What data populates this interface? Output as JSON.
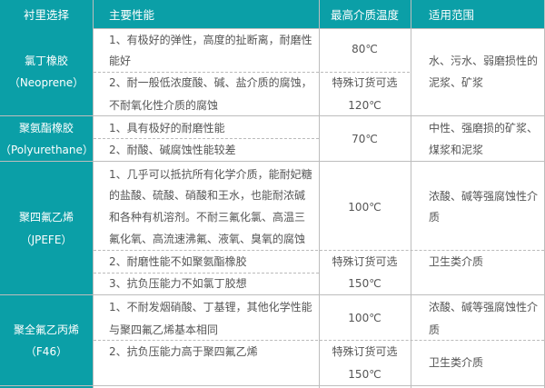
{
  "theme": {
    "header_bg": "#0b9fa7",
    "first_col_bg": "#0b9fa7",
    "text": "#555555",
    "header_text": "#ffffff"
  },
  "header": [
    "衬里选择",
    "主要性能",
    "最高介质温度",
    "适用范围"
  ],
  "groups": [
    {
      "name": [
        "氯丁橡胶",
        "（Neoprene）"
      ],
      "props": [
        [
          "1、有极好的弹性，高度的扯断离，耐磨性",
          "能好"
        ],
        [
          "2、耐一般低浓度酸、碱、盐介质的腐蚀，",
          "不耐氧化性介质的腐蚀"
        ]
      ],
      "temps": [
        "80℃",
        "特殊订货可选",
        "120℃"
      ],
      "scope": [
        [
          "水、污水、弱磨损性的",
          "泥浆、矿浆"
        ]
      ]
    },
    {
      "name": [
        "聚氨酯橡胶",
        "（Polyurethane）"
      ],
      "props": [
        [
          "1、具有极好的耐磨性能"
        ],
        [
          "2、耐酸、碱腐蚀性能较差"
        ]
      ],
      "temps": [
        "70℃"
      ],
      "scope": [
        [
          "中性、强磨损的矿浆、",
          "煤浆和泥浆"
        ]
      ]
    },
    {
      "name": [
        "聚四氟乙烯",
        "（JPEFE）"
      ],
      "props": [
        [
          "1、几乎可以抵抗所有化学介质，能耐妃糖",
          "的盐酸、硫酸、硝酸和王水，也能耐浓碱",
          "和各种有机溶剂。不耐三氟化氯、高温三",
          "氟化氧、高流速沸氟、液氧、臭氧的腐蚀"
        ],
        [
          "2、耐磨性能不如聚氨酯橡胶"
        ],
        [
          "3、抗负压能力不如氯丁胶想"
        ]
      ],
      "temps": [
        "100℃",
        "特殊订货可选",
        "150℃"
      ],
      "scope": [
        [
          "浓酸、碱等强腐蚀性介",
          "质"
        ],
        [
          "卫生类介质"
        ]
      ]
    },
    {
      "name": [
        "聚全氟乙丙烯",
        "（F46）"
      ],
      "props": [
        [
          "1、不耐发烟硝酸、丁基锂，其他化学性能",
          "与聚四氟乙烯基本相同"
        ],
        [
          "2、抗负压能力高于聚四氟乙烯"
        ]
      ],
      "temps": [
        "100℃",
        "特殊订货可选",
        "150℃"
      ],
      "scope": [
        [
          "浓酸、碱等强腐蚀性介",
          "质"
        ],
        [
          "卫生类介质"
        ]
      ]
    }
  ]
}
